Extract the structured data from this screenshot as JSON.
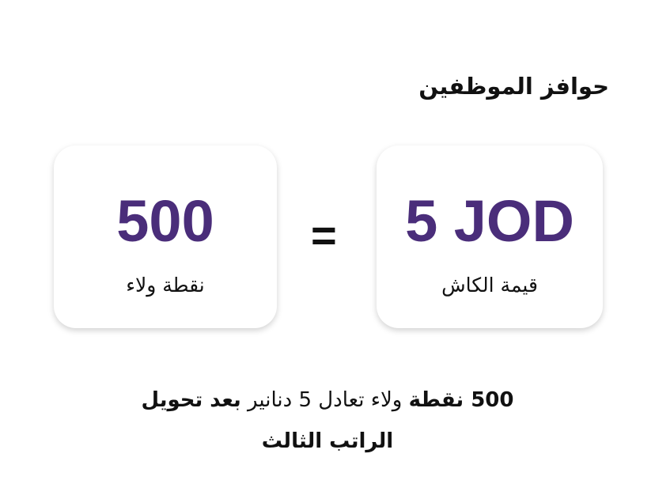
{
  "title": "حوافز الموظفين",
  "points_card": {
    "value": "500",
    "label": "نقطة ولاء"
  },
  "equals_sign": "=",
  "cash_card": {
    "value": "5 JOD",
    "label": "قيمة الكاش"
  },
  "description": {
    "bold_start": "500 نقطة",
    "regular_middle": " ولاء تعادل 5 دنانير ",
    "bold_end": "بعد تحويل",
    "line2_bold": "الراتب الثالث"
  },
  "colors": {
    "accent": "#4a2d7a"
  }
}
